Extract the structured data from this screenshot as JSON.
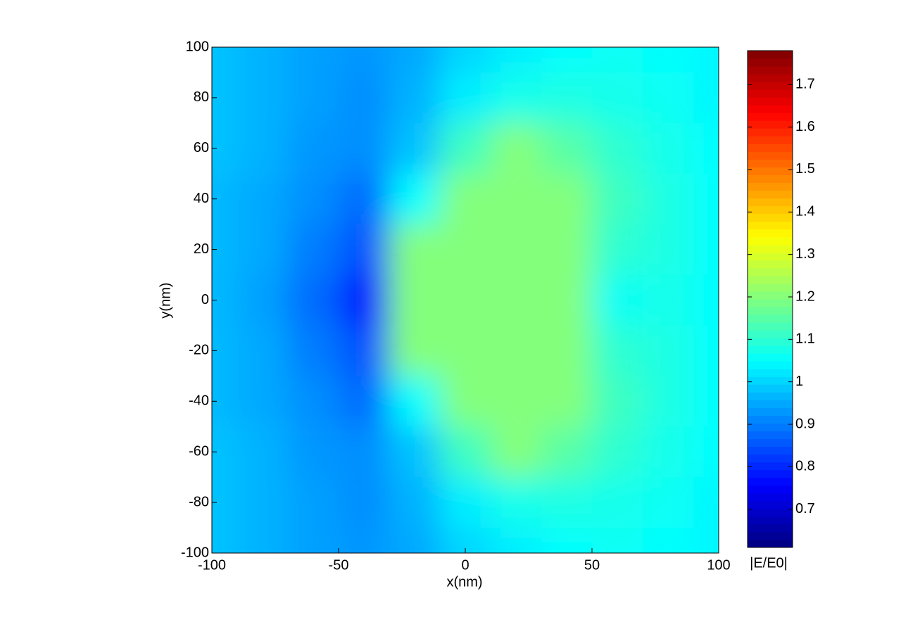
{
  "chart_data": {
    "type": "heatmap",
    "colormap": "jet",
    "xlabel": "x(nm)",
    "ylabel": "y(nm)",
    "colorbar_label": "|E/E0|",
    "x": [
      -100,
      -80,
      -60,
      -40,
      -20,
      0,
      20,
      40,
      60,
      80,
      100
    ],
    "y": [
      100,
      80,
      60,
      40,
      20,
      0,
      -20,
      -40,
      -60,
      -80,
      -100
    ],
    "z": [
      [
        0.98,
        0.96,
        0.94,
        0.93,
        0.95,
        1.0,
        1.03,
        1.05,
        1.06,
        1.05,
        1.04
      ],
      [
        0.98,
        0.96,
        0.94,
        0.92,
        0.96,
        1.03,
        1.07,
        1.08,
        1.07,
        1.06,
        1.04
      ],
      [
        0.98,
        0.96,
        0.93,
        0.92,
        0.98,
        1.12,
        1.2,
        1.15,
        1.1,
        1.07,
        1.05
      ],
      [
        0.97,
        0.95,
        0.92,
        0.88,
        1.05,
        1.2,
        1.2,
        1.2,
        1.12,
        1.08,
        1.05
      ],
      [
        0.97,
        0.95,
        0.9,
        0.85,
        1.2,
        1.2,
        1.2,
        1.2,
        1.1,
        1.08,
        1.05
      ],
      [
        0.97,
        0.94,
        0.88,
        0.78,
        1.2,
        1.2,
        1.2,
        1.2,
        1.06,
        1.07,
        1.05
      ],
      [
        0.97,
        0.95,
        0.9,
        0.85,
        1.2,
        1.2,
        1.2,
        1.2,
        1.1,
        1.08,
        1.05
      ],
      [
        0.97,
        0.95,
        0.92,
        0.88,
        1.05,
        1.2,
        1.2,
        1.2,
        1.12,
        1.08,
        1.05
      ],
      [
        0.98,
        0.96,
        0.93,
        0.92,
        0.98,
        1.12,
        1.2,
        1.15,
        1.1,
        1.07,
        1.05
      ],
      [
        0.98,
        0.96,
        0.94,
        0.92,
        0.96,
        1.03,
        1.07,
        1.08,
        1.07,
        1.06,
        1.04
      ],
      [
        0.98,
        0.96,
        0.94,
        0.93,
        0.95,
        1.0,
        1.03,
        1.05,
        1.06,
        1.05,
        1.04
      ]
    ],
    "xlim": [
      -100,
      100
    ],
    "ylim": [
      -100,
      100
    ],
    "xticks": [
      -100,
      -50,
      0,
      50,
      100
    ],
    "yticks": [
      -100,
      -80,
      -60,
      -40,
      -20,
      0,
      20,
      40,
      60,
      80,
      100
    ],
    "zlim": [
      0.61,
      1.78
    ],
    "colorbar_ticks": [
      0.7,
      0.8,
      0.9,
      1,
      1.1,
      1.2,
      1.3,
      1.4,
      1.5,
      1.6,
      1.7
    ]
  }
}
